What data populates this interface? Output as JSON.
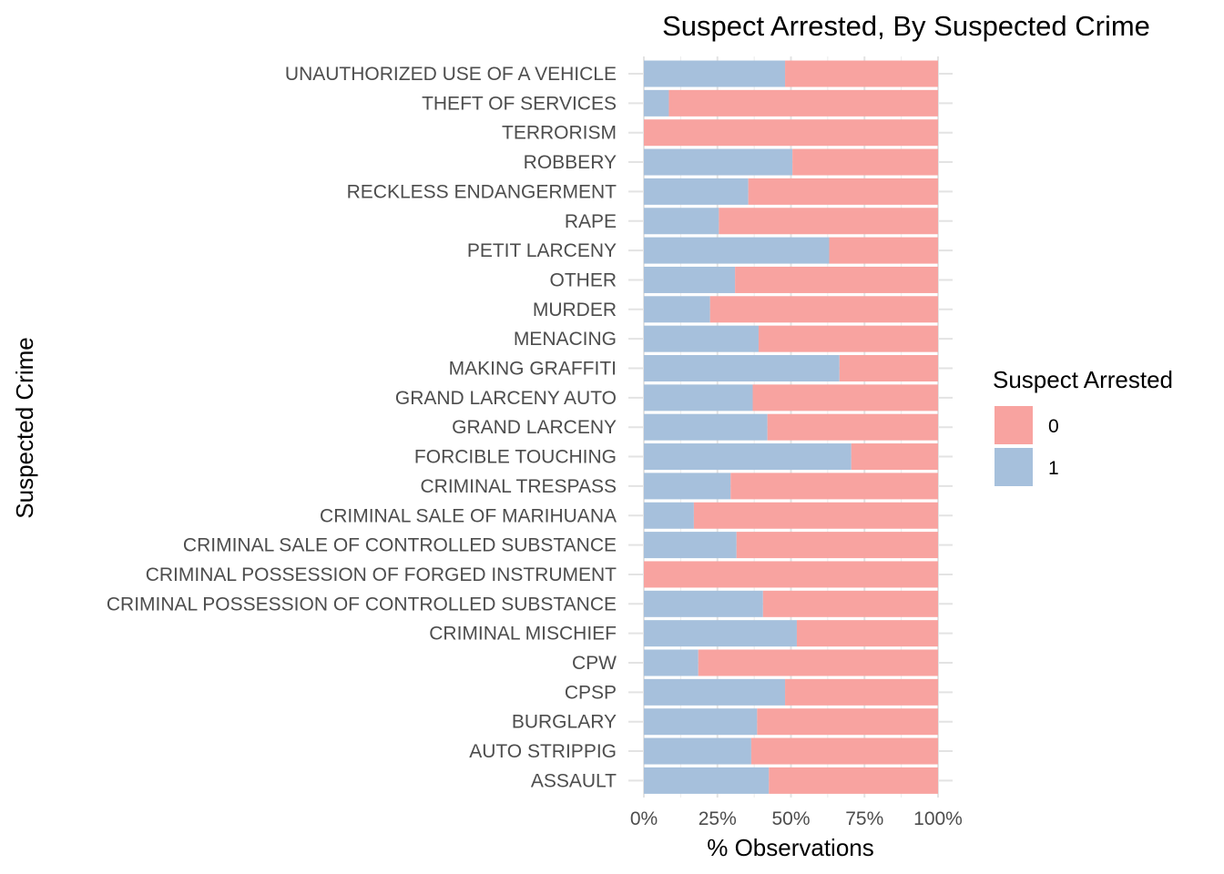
{
  "chart_data": {
    "type": "bar",
    "orientation": "horizontal",
    "stacked": "percent",
    "title": "Suspect Arrested, By Suspected Crime",
    "xlabel": "% Observations",
    "ylabel": "Suspected Crime",
    "xlim": [
      0,
      1
    ],
    "x_ticks": [
      "0%",
      "25%",
      "50%",
      "75%",
      "100%"
    ],
    "grid": true,
    "legend": {
      "title": "Suspect Arrested",
      "position": "right",
      "entries": [
        {
          "label": "0",
          "color": "#f8a3a0"
        },
        {
          "label": "1",
          "color": "#a6c0dc"
        }
      ]
    },
    "categories": [
      "UNAUTHORIZED USE OF A VEHICLE",
      "THEFT OF SERVICES",
      "TERRORISM",
      "ROBBERY",
      "RECKLESS ENDANGERMENT",
      "RAPE",
      "PETIT LARCENY",
      "OTHER",
      "MURDER",
      "MENACING",
      "MAKING GRAFFITI",
      "GRAND LARCENY AUTO",
      "GRAND LARCENY",
      "FORCIBLE TOUCHING",
      "CRIMINAL TRESPASS",
      "CRIMINAL SALE OF MARIHUANA",
      "CRIMINAL SALE OF CONTROLLED SUBSTANCE",
      "CRIMINAL POSSESSION OF FORGED INSTRUMENT",
      "CRIMINAL POSSESSION OF CONTROLLED SUBSTANCE",
      "CRIMINAL MISCHIEF",
      "CPW",
      "CPSP",
      "BURGLARY",
      "AUTO STRIPPIG",
      "ASSAULT"
    ],
    "series": [
      {
        "name": "1",
        "color": "#a6c0dc",
        "values": [
          0.48,
          0.085,
          0.0,
          0.505,
          0.355,
          0.255,
          0.63,
          0.31,
          0.225,
          0.39,
          0.665,
          0.37,
          0.42,
          0.705,
          0.295,
          0.17,
          0.315,
          0.0,
          0.405,
          0.52,
          0.185,
          0.48,
          0.385,
          0.365,
          0.425
        ]
      },
      {
        "name": "0",
        "color": "#f8a3a0",
        "values": [
          0.52,
          0.915,
          1.0,
          0.495,
          0.645,
          0.745,
          0.37,
          0.69,
          0.775,
          0.61,
          0.335,
          0.63,
          0.58,
          0.295,
          0.705,
          0.83,
          0.685,
          1.0,
          0.595,
          0.48,
          0.815,
          0.52,
          0.615,
          0.635,
          0.575
        ]
      }
    ]
  }
}
